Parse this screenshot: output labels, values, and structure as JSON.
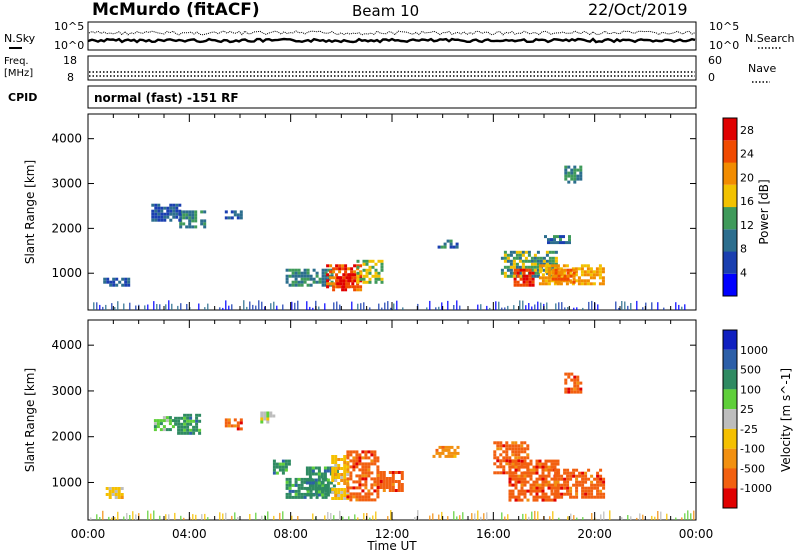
{
  "header": {
    "station": "McMurdo (fitACF)",
    "beam": "Beam 10",
    "date": "22/Oct/2019"
  },
  "status_rows": {
    "noise_left_label": "N.Sky",
    "noise_right_label": "N.Search",
    "noise_ticks_left": [
      "10^5",
      "10^0"
    ],
    "noise_ticks_right": [
      "10^5",
      "10^0"
    ],
    "freq_label_1": "Freq.",
    "freq_label_2": "[MHz]",
    "freq_ticks": [
      "18",
      "8"
    ],
    "nave_label": "Nave",
    "nave_ticks": [
      "60",
      "0"
    ],
    "cpid_label": "CPID",
    "cpid_text": "normal (fast) -151 RF"
  },
  "colors": {
    "power_scale": [
      "#0000ff",
      "#1a3fb0",
      "#2c6e8e",
      "#3f9a5a",
      "#f2c200",
      "#f28c00",
      "#f04a00",
      "#e00000"
    ],
    "velocity_scale": [
      "#1020c0",
      "#2c5fa8",
      "#2f8a62",
      "#5fcf3a",
      "#bdbdbd",
      "#f5c000",
      "#f29010",
      "#f26010",
      "#e00000"
    ]
  },
  "chart_data": [
    {
      "type": "heatmap",
      "name": "power",
      "ylabel": "Slant Range [km]",
      "ylim": [
        180,
        4550
      ],
      "y_ticks": [
        "1000",
        "2000",
        "3000",
        "4000"
      ],
      "x_ticks": [
        "00:00",
        "04:00",
        "08:00",
        "12:00",
        "16:00",
        "20:00",
        "00:00"
      ],
      "xlim_hours": [
        0,
        24
      ],
      "colorbar": {
        "label": "Power [dB]",
        "ticks": [
          "4",
          "8",
          "12",
          "16",
          "20",
          "24",
          "28"
        ],
        "range": [
          0,
          30
        ]
      },
      "regions": [
        {
          "t0": 7.8,
          "t1": 9.6,
          "r0": 700,
          "r1": 1100,
          "v": 10
        },
        {
          "t0": 9.4,
          "t1": 10.8,
          "r0": 650,
          "r1": 1200,
          "v": 24
        },
        {
          "t0": 9.8,
          "t1": 10.5,
          "r0": 700,
          "r1": 1000,
          "v": 28
        },
        {
          "t0": 10.6,
          "t1": 11.6,
          "r0": 800,
          "r1": 1300,
          "v": 14
        },
        {
          "t0": 16.3,
          "t1": 18.5,
          "r0": 900,
          "r1": 1500,
          "v": 12
        },
        {
          "t0": 16.8,
          "t1": 17.6,
          "r0": 700,
          "r1": 1100,
          "v": 26
        },
        {
          "t0": 17.8,
          "t1": 20.4,
          "r0": 750,
          "r1": 1200,
          "v": 18
        },
        {
          "t0": 18.3,
          "t1": 19.2,
          "r0": 800,
          "r1": 1100,
          "v": 22
        },
        {
          "t0": 3.6,
          "t1": 4.6,
          "r0": 2050,
          "r1": 2400,
          "v": 10
        },
        {
          "t0": 2.5,
          "t1": 3.6,
          "r0": 2150,
          "r1": 2550,
          "v": 6
        },
        {
          "t0": 5.4,
          "t1": 6.0,
          "r0": 2200,
          "r1": 2400,
          "v": 6
        },
        {
          "t0": 0.6,
          "t1": 1.6,
          "r0": 700,
          "r1": 900,
          "v": 6
        },
        {
          "t0": 13.8,
          "t1": 14.6,
          "r0": 1550,
          "r1": 1750,
          "v": 8
        },
        {
          "t0": 18.0,
          "t1": 19.0,
          "r0": 1650,
          "r1": 1850,
          "v": 8
        },
        {
          "t0": 18.8,
          "t1": 19.4,
          "r0": 3000,
          "r1": 3400,
          "v": 10
        }
      ]
    },
    {
      "type": "heatmap",
      "name": "velocity",
      "ylabel": "Slant Range [km]",
      "ylim": [
        180,
        4550
      ],
      "y_ticks": [
        "1000",
        "2000",
        "3000",
        "4000"
      ],
      "x_ticks": [
        "00:00",
        "04:00",
        "08:00",
        "12:00",
        "16:00",
        "20:00",
        "00:00"
      ],
      "xlabel": "Time UT",
      "xlim_hours": [
        0,
        24
      ],
      "colorbar": {
        "label": "Velocity [m s^-1]",
        "ticks": [
          "1000",
          "500",
          "100",
          "25",
          "-25",
          "-100",
          "-500",
          "-1000"
        ]
      },
      "regions": [
        {
          "t0": 7.8,
          "t1": 9.4,
          "r0": 700,
          "r1": 1100,
          "c": 2
        },
        {
          "t0": 8.6,
          "t1": 9.8,
          "r0": 750,
          "r1": 1350,
          "c": 2
        },
        {
          "t0": 9.6,
          "t1": 10.2,
          "r0": 650,
          "r1": 1600,
          "c": 5
        },
        {
          "t0": 10.2,
          "t1": 11.4,
          "r0": 600,
          "r1": 1700,
          "c": 7
        },
        {
          "t0": 11.4,
          "t1": 12.4,
          "r0": 800,
          "r1": 1250,
          "c": 7
        },
        {
          "t0": 16.0,
          "t1": 17.4,
          "r0": 1200,
          "r1": 1900,
          "c": 7
        },
        {
          "t0": 16.6,
          "t1": 18.6,
          "r0": 600,
          "r1": 1500,
          "c": 7
        },
        {
          "t0": 18.4,
          "t1": 20.4,
          "r0": 700,
          "r1": 1300,
          "c": 7
        },
        {
          "t0": 3.4,
          "t1": 4.4,
          "r0": 2100,
          "r1": 2500,
          "c": 2
        },
        {
          "t0": 2.6,
          "t1": 3.4,
          "r0": 2150,
          "r1": 2450,
          "c": 3
        },
        {
          "t0": 5.4,
          "t1": 6.0,
          "r0": 2150,
          "r1": 2400,
          "c": 7
        },
        {
          "t0": 6.8,
          "t1": 7.3,
          "r0": 2350,
          "r1": 2550,
          "c": 4
        },
        {
          "t0": 0.7,
          "t1": 1.4,
          "r0": 700,
          "r1": 900,
          "c": 5
        },
        {
          "t0": 13.6,
          "t1": 14.6,
          "r0": 1550,
          "r1": 1800,
          "c": 6
        },
        {
          "t0": 18.8,
          "t1": 19.4,
          "r0": 3000,
          "r1": 3400,
          "c": 7
        },
        {
          "t0": 7.3,
          "t1": 8.0,
          "r0": 1200,
          "r1": 1500,
          "c": 2
        }
      ]
    }
  ]
}
